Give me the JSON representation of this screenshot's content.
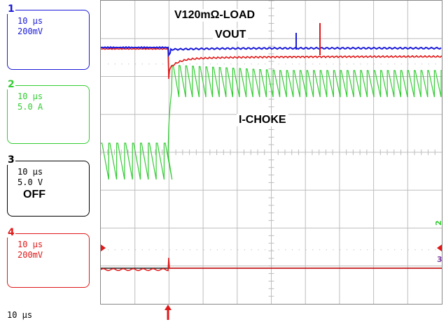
{
  "channels": [
    {
      "number": "1",
      "timebase": "10 μs",
      "scale": "200mV",
      "color": "#1a1ad9"
    },
    {
      "number": "2",
      "timebase": "10 μs",
      "scale": "5.0 A",
      "color": "#33cc33"
    },
    {
      "number": "3",
      "timebase": "10 μs",
      "scale": "5.0 V",
      "state": "OFF",
      "color": "#000000"
    },
    {
      "number": "4",
      "timebase": "10 μs",
      "scale": "200mV",
      "color": "#e01818"
    }
  ],
  "timebase_label": "10 μs",
  "annotations": {
    "load": "V120mΩ-LOAD",
    "vout": "VOUT",
    "ichoke": "I-CHOKE"
  },
  "grid": {
    "divisions_x": 10,
    "divisions_y": 8
  }
}
